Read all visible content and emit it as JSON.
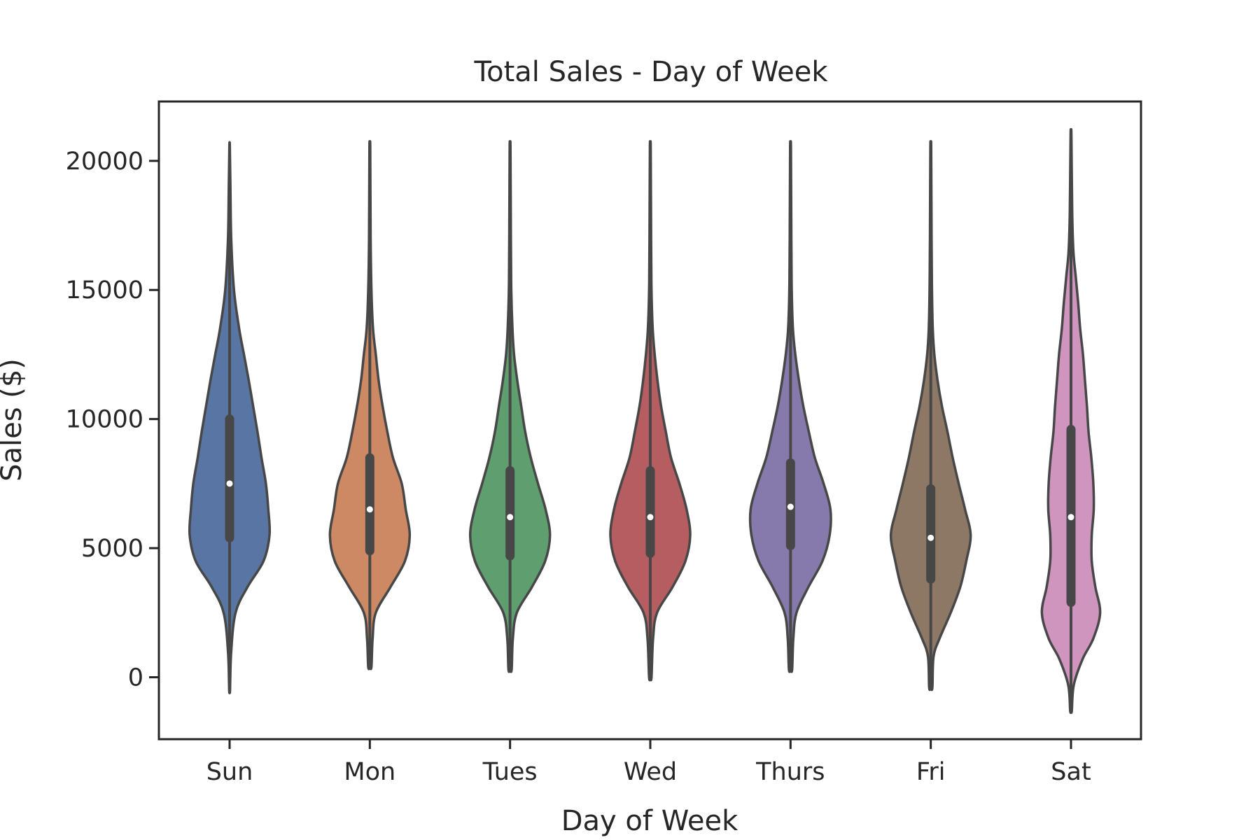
{
  "chart_data": {
    "type": "violin",
    "title": "Total Sales - Day of Week",
    "xlabel": "Day of Week",
    "ylabel": "Sales ($)",
    "categories": [
      "Sun",
      "Mon",
      "Tues",
      "Wed",
      "Thurs",
      "Fri",
      "Sat"
    ],
    "y_ticks": [
      0,
      5000,
      10000,
      15000,
      20000
    ],
    "y_tick_labels": [
      "0",
      "5000",
      "10000",
      "15000",
      "20000"
    ],
    "ylim": [
      -2400,
      22300
    ],
    "grid": false,
    "legend": "none",
    "series": [
      {
        "category": "Sun",
        "color": "#5975a4",
        "min": -500,
        "q1": 5400,
        "median": 7500,
        "q3": 10000,
        "max": 20600,
        "density": [
          [
            -500,
            0.01
          ],
          [
            1000,
            0.04
          ],
          [
            2500,
            0.15
          ],
          [
            3500,
            0.45
          ],
          [
            4500,
            0.85
          ],
          [
            5500,
            1.0
          ],
          [
            6500,
            0.97
          ],
          [
            7500,
            0.91
          ],
          [
            8500,
            0.8
          ],
          [
            9500,
            0.7
          ],
          [
            10500,
            0.59
          ],
          [
            11500,
            0.48
          ],
          [
            12500,
            0.36
          ],
          [
            13500,
            0.24
          ],
          [
            15000,
            0.11
          ],
          [
            17000,
            0.04
          ],
          [
            19000,
            0.02
          ],
          [
            20600,
            0.005
          ]
        ]
      },
      {
        "category": "Mon",
        "color": "#cc8963",
        "min": 400,
        "q1": 4900,
        "median": 6500,
        "q3": 8500,
        "max": 20500,
        "density": [
          [
            400,
            0.04
          ],
          [
            1500,
            0.07
          ],
          [
            2500,
            0.15
          ],
          [
            3500,
            0.52
          ],
          [
            4500,
            0.88
          ],
          [
            5500,
            1.0
          ],
          [
            6500,
            0.9
          ],
          [
            7500,
            0.8
          ],
          [
            8500,
            0.58
          ],
          [
            9500,
            0.44
          ],
          [
            10500,
            0.32
          ],
          [
            11500,
            0.22
          ],
          [
            12500,
            0.15
          ],
          [
            13500,
            0.08
          ],
          [
            15000,
            0.04
          ],
          [
            17000,
            0.02
          ],
          [
            20500,
            0.01
          ]
        ]
      },
      {
        "category": "Tues",
        "color": "#5f9e6e",
        "min": 300,
        "q1": 4700,
        "median": 6200,
        "q3": 8000,
        "max": 20500,
        "density": [
          [
            300,
            0.04
          ],
          [
            1500,
            0.07
          ],
          [
            2500,
            0.17
          ],
          [
            3500,
            0.55
          ],
          [
            4500,
            0.88
          ],
          [
            5500,
            1.0
          ],
          [
            6500,
            0.89
          ],
          [
            7500,
            0.7
          ],
          [
            8500,
            0.52
          ],
          [
            9500,
            0.38
          ],
          [
            10500,
            0.28
          ],
          [
            11500,
            0.18
          ],
          [
            12500,
            0.1
          ],
          [
            13500,
            0.06
          ],
          [
            15000,
            0.03
          ],
          [
            17000,
            0.02
          ],
          [
            20500,
            0.01
          ]
        ]
      },
      {
        "category": "Wed",
        "color": "#b55d60",
        "min": 0,
        "q1": 4800,
        "median": 6200,
        "q3": 8000,
        "max": 20500,
        "density": [
          [
            0,
            0.03
          ],
          [
            1500,
            0.07
          ],
          [
            2500,
            0.17
          ],
          [
            3500,
            0.56
          ],
          [
            4500,
            0.88
          ],
          [
            5500,
            1.0
          ],
          [
            6500,
            0.91
          ],
          [
            7500,
            0.73
          ],
          [
            8500,
            0.52
          ],
          [
            9500,
            0.39
          ],
          [
            10500,
            0.27
          ],
          [
            11500,
            0.18
          ],
          [
            12500,
            0.11
          ],
          [
            13500,
            0.06
          ],
          [
            15000,
            0.03
          ],
          [
            17000,
            0.02
          ],
          [
            20500,
            0.01
          ]
        ]
      },
      {
        "category": "Thurs",
        "color": "#857aab",
        "min": 300,
        "q1": 5100,
        "median": 6600,
        "q3": 8300,
        "max": 20500,
        "density": [
          [
            300,
            0.04
          ],
          [
            1500,
            0.07
          ],
          [
            2500,
            0.15
          ],
          [
            3500,
            0.45
          ],
          [
            4500,
            0.8
          ],
          [
            5500,
            0.98
          ],
          [
            6500,
            1.0
          ],
          [
            7500,
            0.83
          ],
          [
            8500,
            0.61
          ],
          [
            9500,
            0.46
          ],
          [
            10500,
            0.32
          ],
          [
            11500,
            0.21
          ],
          [
            12500,
            0.12
          ],
          [
            13500,
            0.06
          ],
          [
            15000,
            0.03
          ],
          [
            17000,
            0.02
          ],
          [
            20500,
            0.01
          ]
        ]
      },
      {
        "category": "Fri",
        "color": "#8d7866",
        "min": -400,
        "q1": 3800,
        "median": 5400,
        "q3": 7300,
        "max": 20500,
        "density": [
          [
            -400,
            0.04
          ],
          [
            800,
            0.07
          ],
          [
            1500,
            0.22
          ],
          [
            2500,
            0.5
          ],
          [
            3500,
            0.74
          ],
          [
            4500,
            0.89
          ],
          [
            5500,
            1.0
          ],
          [
            6500,
            0.86
          ],
          [
            7500,
            0.7
          ],
          [
            8500,
            0.55
          ],
          [
            9500,
            0.42
          ],
          [
            10500,
            0.28
          ],
          [
            11500,
            0.17
          ],
          [
            12500,
            0.09
          ],
          [
            13500,
            0.05
          ],
          [
            15000,
            0.03
          ],
          [
            17000,
            0.02
          ],
          [
            20500,
            0.01
          ]
        ]
      },
      {
        "category": "Sat",
        "color": "#d095bf",
        "min": -1300,
        "q1": 2900,
        "median": 6200,
        "q3": 9600,
        "max": 21000,
        "density": [
          [
            -1300,
            0.02
          ],
          [
            -300,
            0.07
          ],
          [
            700,
            0.29
          ],
          [
            1500,
            0.56
          ],
          [
            2500,
            0.73
          ],
          [
            3500,
            0.61
          ],
          [
            4500,
            0.52
          ],
          [
            5500,
            0.52
          ],
          [
            6500,
            0.57
          ],
          [
            7500,
            0.56
          ],
          [
            8500,
            0.51
          ],
          [
            9500,
            0.44
          ],
          [
            10500,
            0.4
          ],
          [
            11500,
            0.35
          ],
          [
            12500,
            0.3
          ],
          [
            13500,
            0.23
          ],
          [
            14500,
            0.18
          ],
          [
            15500,
            0.12
          ],
          [
            16500,
            0.06
          ],
          [
            18000,
            0.03
          ],
          [
            21000,
            0.01
          ]
        ]
      }
    ]
  }
}
